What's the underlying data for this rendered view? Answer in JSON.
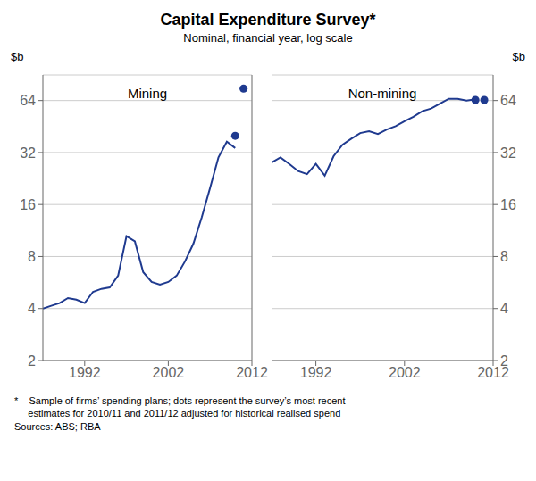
{
  "chart_data": [
    {
      "type": "line",
      "title": "Capital Expenditure Survey*",
      "subtitle": "Nominal, financial year, log scale",
      "annotations": [
        "Mining"
      ],
      "ylabel": "$b",
      "x": [
        1987,
        1988,
        1989,
        1990,
        1991,
        1992,
        1993,
        1994,
        1995,
        1996,
        1997,
        1998,
        1999,
        2000,
        2001,
        2002,
        2003,
        2004,
        2005,
        2006,
        2007,
        2008,
        2009,
        2010,
        2011
      ],
      "xlim": [
        1987,
        2012
      ],
      "xticks": [
        1992,
        2002,
        2012
      ],
      "ylim": [
        2,
        90
      ],
      "yticks": [
        2,
        4,
        8,
        16,
        32,
        64
      ],
      "log": "y",
      "grid": true,
      "series": [
        {
          "type": "line",
          "color": "#1f3a8f",
          "values": [
            4.0,
            4.15,
            4.3,
            4.6,
            4.5,
            4.3,
            5.0,
            5.2,
            5.3,
            6.2,
            10.5,
            9.8,
            6.5,
            5.7,
            5.5,
            5.7,
            6.2,
            7.5,
            9.5,
            13.5,
            20.0,
            30.0,
            37.0,
            34.0,
            null
          ]
        },
        {
          "type": "scatter",
          "color": "#1f3a8f",
          "marker": "circle",
          "values": [
            null,
            null,
            null,
            null,
            null,
            null,
            null,
            null,
            null,
            null,
            null,
            null,
            null,
            null,
            null,
            null,
            null,
            null,
            null,
            null,
            null,
            null,
            null,
            40.0,
            75.0
          ]
        }
      ]
    },
    {
      "type": "line",
      "annotations": [
        "Non-mining"
      ],
      "ylabel": "$b",
      "footnote": "*    Sample of firms’ spending plans; dots represent the survey’s most recent\n     estimates for 2010/11 and 2011/12 adjusted for historical realised spend\nSources: ABS; RBA",
      "x": [
        1987,
        1988,
        1989,
        1990,
        1991,
        1992,
        1993,
        1994,
        1995,
        1996,
        1997,
        1998,
        1999,
        2000,
        2001,
        2002,
        2003,
        2004,
        2005,
        2006,
        2007,
        2008,
        2009,
        2010,
        2011
      ],
      "xlim": [
        1987,
        2012
      ],
      "xticks": [
        1992,
        2002,
        2012
      ],
      "ylim": [
        2,
        90
      ],
      "yticks": [
        2,
        4,
        8,
        16,
        32,
        64
      ],
      "log": "y",
      "grid": true,
      "series": [
        {
          "type": "line",
          "color": "#1f3a8f",
          "values": [
            28.0,
            30.0,
            27.5,
            25.0,
            24.0,
            27.5,
            23.5,
            30.5,
            35.5,
            38.5,
            41.5,
            42.5,
            41.0,
            43.5,
            45.5,
            48.5,
            51.5,
            55.5,
            57.5,
            61.5,
            65.5,
            65.5,
            64.0,
            65.0,
            null
          ]
        },
        {
          "type": "scatter",
          "color": "#1f3a8f",
          "marker": "circle",
          "values": [
            null,
            null,
            null,
            null,
            null,
            null,
            null,
            null,
            null,
            null,
            null,
            null,
            null,
            null,
            null,
            null,
            null,
            null,
            null,
            null,
            null,
            null,
            null,
            64.5,
            64.5
          ]
        }
      ]
    }
  ]
}
